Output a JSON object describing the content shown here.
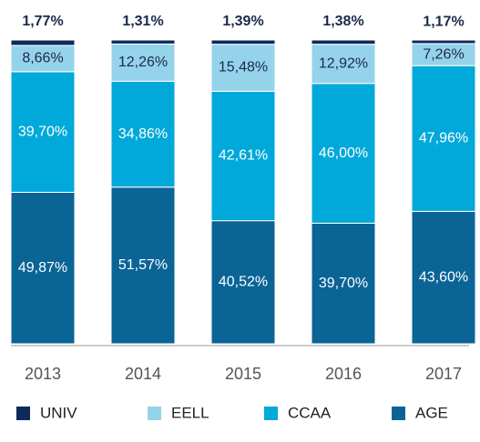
{
  "chart_data": {
    "type": "stacked_bar",
    "categories": [
      "2013",
      "2014",
      "2015",
      "2016",
      "2017"
    ],
    "series": [
      {
        "name": "UNIV",
        "color": "#0d2a5c",
        "values": [
          1.77,
          1.31,
          1.39,
          1.38,
          1.17
        ],
        "value_labels": [
          "1,77%",
          "1,31%",
          "1,39%",
          "1,38%",
          "1,17%"
        ]
      },
      {
        "name": "EELL",
        "color": "#95d3ea",
        "values": [
          8.66,
          12.26,
          15.48,
          12.92,
          7.26
        ],
        "value_labels": [
          "8,66%",
          "12,26%",
          "15,48%",
          "12,92%",
          "7,26%"
        ]
      },
      {
        "name": "CCAA",
        "color": "#00a9d9",
        "values": [
          39.7,
          34.86,
          42.61,
          46.0,
          47.96
        ],
        "value_labels": [
          "39,70%",
          "34,86%",
          "42,61%",
          "46,00%",
          "47,96%"
        ]
      },
      {
        "name": "AGE",
        "color": "#0a6496",
        "values": [
          49.87,
          51.57,
          40.52,
          39.7,
          43.6
        ],
        "value_labels": [
          "49,87%",
          "51,57%",
          "40,52%",
          "39,70%",
          "43,60%"
        ]
      }
    ]
  }
}
